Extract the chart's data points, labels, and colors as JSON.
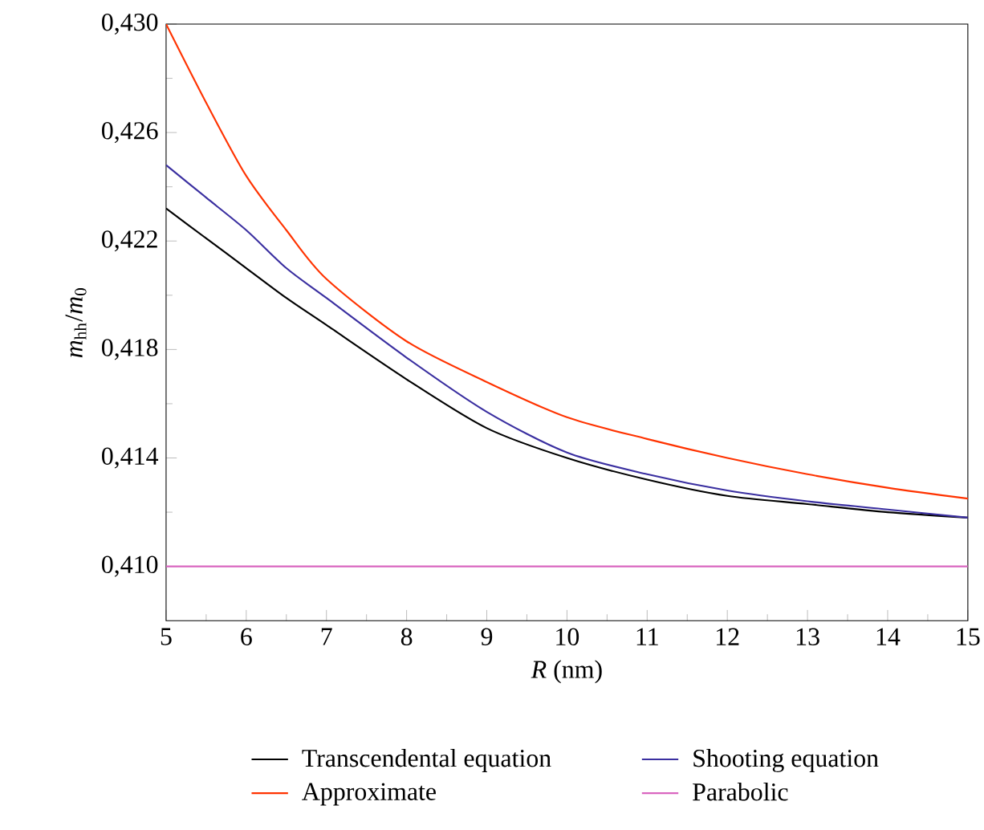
{
  "chart_data": {
    "type": "line",
    "xlabel": "*R* (nm)",
    "ylabel": "*m*$_{hh}$/*m*$_{0}$",
    "x": [
      5,
      5.5,
      6,
      6.5,
      7,
      8,
      9,
      10,
      11,
      12,
      13,
      14,
      15
    ],
    "series": [
      {
        "name": "Transcendental equation",
        "color": "#000000",
        "values": [
          0.4232,
          0.4221,
          0.421,
          0.4199,
          0.4189,
          0.4169,
          0.4151,
          0.414,
          0.4132,
          0.4126,
          0.4123,
          0.412,
          0.4118
        ]
      },
      {
        "name": "Shooting equation",
        "color": "#3a2fa0",
        "values": [
          0.4248,
          0.4236,
          0.4224,
          0.421,
          0.4199,
          0.4177,
          0.4157,
          0.4142,
          0.4134,
          0.4128,
          0.4124,
          0.4121,
          0.4118
        ]
      },
      {
        "name": "Approximate",
        "color": "#ff3300",
        "values": [
          0.43,
          0.4271,
          0.4244,
          0.4224,
          0.4206,
          0.4183,
          0.4168,
          0.4155,
          0.4147,
          0.414,
          0.4134,
          0.4129,
          0.4125
        ]
      },
      {
        "name": "Parabolic",
        "color": "#d966c0",
        "values": [
          0.41,
          0.41,
          0.41,
          0.41,
          0.41,
          0.41,
          0.41,
          0.41,
          0.41,
          0.41,
          0.41,
          0.41,
          0.41
        ]
      }
    ],
    "xlim": [
      5,
      15
    ],
    "xticks": [
      5,
      6,
      7,
      8,
      9,
      10,
      11,
      12,
      13,
      14,
      15
    ],
    "ylim": [
      0.408,
      0.43
    ],
    "yticks": [
      {
        "value": 0.41,
        "label": "0,410"
      },
      {
        "value": 0.414,
        "label": "0,414"
      },
      {
        "value": 0.418,
        "label": "0,418"
      },
      {
        "value": 0.422,
        "label": "0,422"
      },
      {
        "value": 0.426,
        "label": "0,426"
      },
      {
        "value": 0.43,
        "label": "0,430"
      }
    ],
    "legend": "bottom",
    "grid": false,
    "marker": "none",
    "line_style": "solid"
  }
}
